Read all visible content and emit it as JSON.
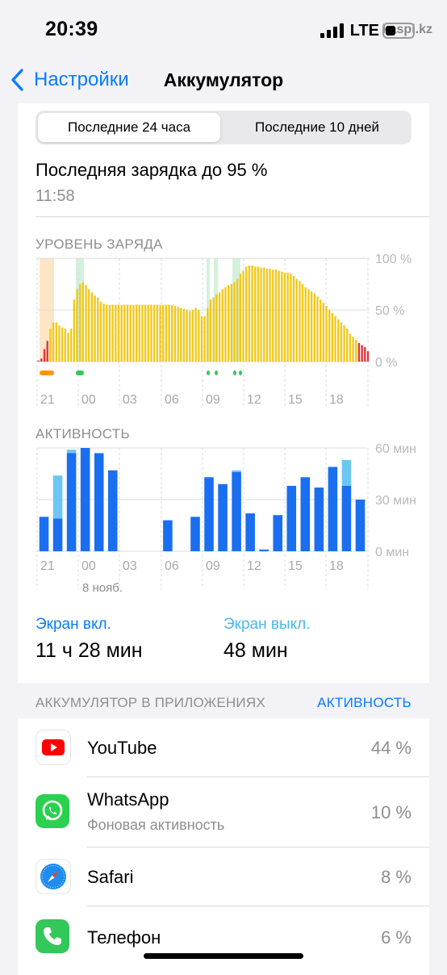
{
  "status": {
    "time": "20:39",
    "network": "LTE",
    "watermark": "kaspi.kz"
  },
  "nav": {
    "back_label": "Настройки",
    "title": "Аккумулятор"
  },
  "segments": {
    "active": "Последние 24 часа",
    "inactive": "Последние 10 дней"
  },
  "last_charge": {
    "label": "Последняя зарядка до 95 %",
    "time": "11:58"
  },
  "colors": {
    "accent": "#0a7aff",
    "battery_bar": "#f2c81a",
    "battery_low": "#e0343a",
    "activity_on": "#1a6ff0",
    "activity_off": "#6cc6f4",
    "charging_green": "#34c759",
    "charging_orange": "#ff9500"
  },
  "battery_chart": {
    "title": "УРОВЕНЬ ЗАРЯДА",
    "chart_data": {
      "type": "bar",
      "y_ticks": [
        "100 %",
        "50 %",
        "0 %"
      ],
      "ylim": [
        0,
        100
      ],
      "x_ticks": [
        "21",
        "00",
        "03",
        "06",
        "09",
        "12",
        "15",
        "18"
      ],
      "values": [
        1,
        3,
        12,
        20,
        32,
        38,
        38,
        35,
        33,
        32,
        28,
        32,
        60,
        70,
        75,
        77,
        74,
        70,
        67,
        64,
        62,
        58,
        56,
        55,
        55,
        55,
        55,
        55,
        55,
        55,
        55,
        55,
        55,
        55,
        55,
        55,
        55,
        55,
        55,
        55,
        55,
        55,
        55,
        55,
        55,
        55,
        54,
        53,
        52,
        51,
        50,
        49,
        50,
        52,
        50,
        44,
        44,
        52,
        60,
        62,
        65,
        67,
        70,
        72,
        74,
        75,
        77,
        80,
        85,
        88,
        92,
        93,
        93,
        92,
        92,
        91,
        91,
        90,
        90,
        89,
        89,
        88,
        87,
        86,
        86,
        85,
        83,
        80,
        78,
        75,
        72,
        70,
        68,
        66,
        63,
        60,
        57,
        54,
        50,
        47,
        44,
        41,
        38,
        35,
        32,
        27,
        24,
        21,
        18,
        16,
        14,
        10
      ]
    }
  },
  "activity_chart": {
    "title": "АКТИВНОСТЬ",
    "date_label": "8 нояб.",
    "chart_data": {
      "type": "bar",
      "y_ticks": [
        "60 мин",
        "30 мин",
        "0 мин"
      ],
      "ylim": [
        0,
        60
      ],
      "x_ticks": [
        "21",
        "00",
        "03",
        "06",
        "09",
        "12",
        "15",
        "18"
      ],
      "series": [
        {
          "values": [
            20,
            19,
            57,
            60,
            57,
            47,
            0,
            0,
            0,
            18,
            0,
            20,
            43,
            39,
            46,
            22,
            1,
            21,
            38,
            43,
            37,
            49,
            38,
            30
          ]
        },
        {
          "values": [
            0,
            25,
            2,
            0,
            0,
            0,
            0,
            0,
            0,
            0,
            0,
            0,
            0,
            0,
            1,
            0,
            0,
            0,
            0,
            0,
            0,
            0,
            15,
            0
          ]
        }
      ]
    }
  },
  "screen": {
    "on_label": "Экран вкл.",
    "on_value": "11 ч 28 мин",
    "off_label": "Экран выкл.",
    "off_value": "48 мин"
  },
  "apps_section": {
    "header": "АККУМУЛЯТОР В ПРИЛОЖЕНИЯХ",
    "link": "АКТИВНОСТЬ"
  },
  "apps": [
    {
      "name": "YouTube",
      "sub": "",
      "pct": "44 %",
      "icon": "youtube-icon"
    },
    {
      "name": "WhatsApp",
      "sub": "Фоновая активность",
      "pct": "10 %",
      "icon": "whatsapp-icon"
    },
    {
      "name": "Safari",
      "sub": "",
      "pct": "8 %",
      "icon": "safari-icon"
    },
    {
      "name": "Телефон",
      "sub": "",
      "pct": "6 %",
      "icon": "phone-icon"
    }
  ]
}
